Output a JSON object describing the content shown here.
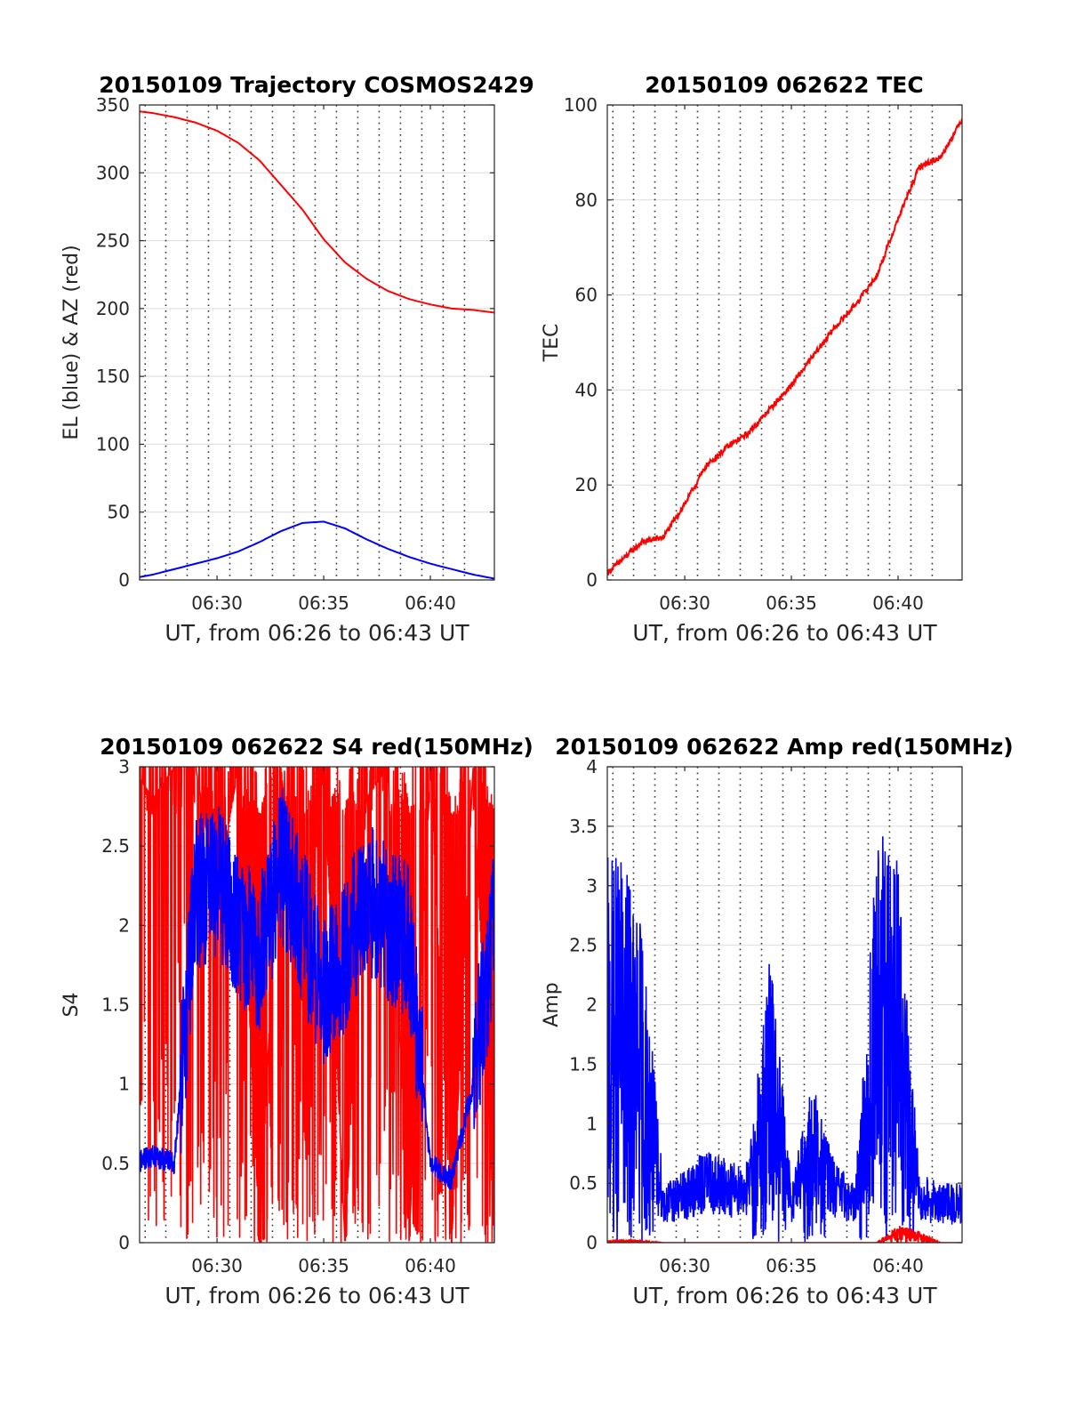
{
  "figure": {
    "x_tick_labels": [
      "06:30",
      "06:35",
      "06:40"
    ],
    "x_label": "UT, from 06:26 to 06:43 UT"
  },
  "chart_data": [
    {
      "id": "trajectory",
      "type": "line",
      "title": "20150109 Trajectory COSMOS2429",
      "xlabel": "UT, from 06:26 to 06:43 UT",
      "ylabel": "EL (blue) & AZ (red)",
      "xlim": [
        6.433,
        6.717
      ],
      "ylim": [
        0,
        350
      ],
      "yticks": [
        0,
        50,
        100,
        150,
        200,
        250,
        300,
        350
      ],
      "ytick_labels": [
        "0",
        "50",
        "100",
        "150",
        "200",
        "250",
        "300",
        "350"
      ],
      "xticks": [
        6.5,
        6.583,
        6.667
      ],
      "xtick_labels": [
        "06:30",
        "06:35",
        "06:40"
      ],
      "grid": true,
      "series": [
        {
          "name": "AZ",
          "color": "#ff0000",
          "x": [
            "06:26",
            "06:27",
            "06:28",
            "06:29",
            "06:30",
            "06:31",
            "06:32",
            "06:33",
            "06:34",
            "06:35",
            "06:36",
            "06:37",
            "06:38",
            "06:39",
            "06:40",
            "06:41",
            "06:42",
            "06:43"
          ],
          "values": [
            346,
            344,
            341,
            337,
            331,
            322,
            309,
            291,
            273,
            251,
            234,
            222,
            213,
            207,
            203,
            200,
            199,
            197
          ]
        },
        {
          "name": "EL",
          "color": "#0000ff",
          "x": [
            "06:26",
            "06:27",
            "06:28",
            "06:29",
            "06:30",
            "06:31",
            "06:32",
            "06:33",
            "06:34",
            "06:35",
            "06:36",
            "06:37",
            "06:38",
            "06:39",
            "06:40",
            "06:41",
            "06:42",
            "06:43"
          ],
          "values": [
            1,
            4,
            8,
            12,
            16,
            21,
            28,
            36,
            42,
            43,
            38,
            30,
            23,
            17,
            12,
            8,
            4,
            1
          ]
        }
      ]
    },
    {
      "id": "tec",
      "type": "line",
      "title": "20150109 062622 TEC",
      "xlabel": "UT, from 06:26 to 06:43 UT",
      "ylabel": "TEC",
      "xlim": [
        6.433,
        6.717
      ],
      "ylim": [
        0,
        100
      ],
      "yticks": [
        0,
        20,
        40,
        60,
        80,
        100
      ],
      "ytick_labels": [
        "0",
        "20",
        "40",
        "60",
        "80",
        "100"
      ],
      "xticks": [
        6.5,
        6.583,
        6.667
      ],
      "xtick_labels": [
        "06:30",
        "06:35",
        "06:40"
      ],
      "grid": true,
      "series": [
        {
          "name": "TEC",
          "color": "#ff0000",
          "x": [
            "06:26",
            "06:27",
            "06:28",
            "06:29",
            "06:30",
            "06:31",
            "06:32",
            "06:33",
            "06:34",
            "06:35",
            "06:36",
            "06:37",
            "06:38",
            "06:39",
            "06:40",
            "06:41",
            "06:42",
            "06:43"
          ],
          "values": [
            0,
            4,
            8,
            9,
            16,
            24,
            28,
            31,
            36,
            41,
            47,
            53,
            58,
            64,
            76,
            87,
            89,
            97
          ]
        }
      ]
    },
    {
      "id": "s4",
      "type": "line",
      "title": "20150109 062622 S4 red(150MHz)",
      "xlabel": "UT, from 06:26 to 06:43 UT",
      "ylabel": "S4",
      "xlim": [
        6.433,
        6.717
      ],
      "ylim": [
        0,
        3
      ],
      "yticks": [
        0,
        0.5,
        1,
        1.5,
        2,
        2.5,
        3
      ],
      "ytick_labels": [
        "0",
        "0.5",
        "1",
        "1.5",
        "2",
        "2.5",
        "3"
      ],
      "xticks": [
        6.5,
        6.583,
        6.667
      ],
      "xtick_labels": [
        "06:30",
        "06:35",
        "06:40"
      ],
      "grid": true,
      "series": [
        {
          "name": "red",
          "color": "#ff0000",
          "x": [
            "06:26",
            "06:27",
            "06:28",
            "06:29",
            "06:30",
            "06:31",
            "06:32",
            "06:33",
            "06:34",
            "06:35",
            "06:36",
            "06:37",
            "06:38",
            "06:39",
            "06:40",
            "06:41",
            "06:42",
            "06:43"
          ],
          "values": [
            3.0,
            2.8,
            3.0,
            3.0,
            2.2,
            3.0,
            0.0,
            3.0,
            1.5,
            3.0,
            0.0,
            2.8,
            3.0,
            0.0,
            3.0,
            0.0,
            3.0,
            0.0
          ]
        },
        {
          "name": "blue",
          "color": "#0000ff",
          "x": [
            "06:26",
            "06:27",
            "06:28",
            "06:29",
            "06:30",
            "06:31",
            "06:32",
            "06:33",
            "06:34",
            "06:35",
            "06:36",
            "06:37",
            "06:38",
            "06:39",
            "06:40",
            "06:41",
            "06:42",
            "06:43"
          ],
          "values": [
            0.5,
            0.55,
            0.5,
            2.2,
            2.3,
            2.0,
            1.8,
            2.4,
            2.0,
            1.6,
            1.8,
            2.2,
            2.0,
            1.9,
            0.5,
            0.4,
            1.0,
            2.0
          ]
        }
      ]
    },
    {
      "id": "amp",
      "type": "line",
      "title": "20150109 062622 Amp red(150MHz)",
      "xlabel": "UT, from 06:26 to 06:43 UT",
      "ylabel": "Amp",
      "xlim": [
        6.433,
        6.717
      ],
      "ylim": [
        0,
        4
      ],
      "yticks": [
        0,
        0.5,
        1,
        1.5,
        2,
        2.5,
        3,
        3.5,
        4
      ],
      "ytick_labels": [
        "0",
        "0.5",
        "1",
        "1.5",
        "2",
        "2.5",
        "3",
        "3.5",
        "4"
      ],
      "xticks": [
        6.5,
        6.583,
        6.667
      ],
      "xtick_labels": [
        "06:30",
        "06:35",
        "06:40"
      ],
      "grid": true,
      "series": [
        {
          "name": "blue",
          "color": "#0000ff",
          "x": [
            "06:26",
            "06:27",
            "06:28",
            "06:29",
            "06:30",
            "06:31",
            "06:32",
            "06:33",
            "06:34",
            "06:35",
            "06:36",
            "06:37",
            "06:38",
            "06:39",
            "06:40",
            "06:41",
            "06:42",
            "06:43"
          ],
          "values": [
            3.2,
            3.3,
            2.7,
            0.5,
            0.6,
            0.8,
            0.7,
            0.7,
            2.5,
            0.5,
            1.4,
            0.7,
            0.5,
            3.5,
            3.2,
            0.6,
            0.5,
            0.5
          ]
        },
        {
          "name": "red",
          "color": "#ff0000",
          "x": [
            "06:26",
            "06:27",
            "06:28",
            "06:29",
            "06:30",
            "06:31",
            "06:32",
            "06:33",
            "06:34",
            "06:35",
            "06:36",
            "06:37",
            "06:38",
            "06:39",
            "06:40",
            "06:41",
            "06:42",
            "06:43"
          ],
          "values": [
            0.0,
            0.03,
            0.02,
            0.0,
            0.0,
            0.0,
            0.0,
            0.0,
            0.0,
            0.0,
            0.0,
            0.0,
            0.0,
            0.0,
            0.15,
            0.1,
            0.0,
            0.0
          ]
        }
      ]
    }
  ]
}
